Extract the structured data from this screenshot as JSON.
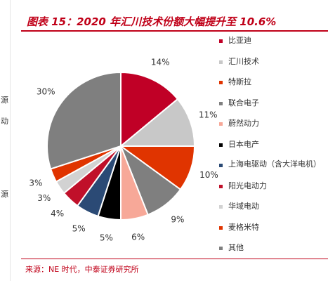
{
  "page": {
    "title": "图表 15：2020 年汇川技术份额大幅提升至 10.6%",
    "source": "来源：NE 时代，中泰证券研究所",
    "left_fragments": [
      "源",
      "动",
      "源"
    ]
  },
  "chart_data": {
    "type": "pie",
    "title": "图表 15：2020 年汇川技术份额大幅提升至 10.6%",
    "start": "12 o'clock",
    "direction": "clockwise",
    "legend_position": "right",
    "slices": [
      {
        "label": "比亚迪",
        "value": 14,
        "value_label": "14%",
        "color": "#c00026"
      },
      {
        "label": "汇川技术",
        "value": 11,
        "value_label": "11%",
        "color": "#c8c8c8"
      },
      {
        "label": "特斯拉",
        "value": 10,
        "value_label": "10%",
        "color": "#e03400"
      },
      {
        "label": "联合电子",
        "value": 9,
        "value_label": "9%",
        "color": "#7f7f7f"
      },
      {
        "label": "蔚然动力",
        "value": 6,
        "value_label": "6%",
        "color": "#f7a898"
      },
      {
        "label": "日本电产",
        "value": 5,
        "value_label": "5%",
        "color": "#000000"
      },
      {
        "label": "上海电驱动（含大洋电机）",
        "value": 5,
        "value_label": "5%",
        "color": "#2b4a75"
      },
      {
        "label": "阳光电动力",
        "value": 4,
        "value_label": "4%",
        "color": "#c0102a"
      },
      {
        "label": "华域电动",
        "value": 3,
        "value_label": "3%",
        "color": "#d2d2d2"
      },
      {
        "label": "麦格米特",
        "value": 3,
        "value_label": "3%",
        "color": "#e03400"
      },
      {
        "label": "其他",
        "value": 30,
        "value_label": "30%",
        "color": "#7f7f7f"
      }
    ]
  }
}
